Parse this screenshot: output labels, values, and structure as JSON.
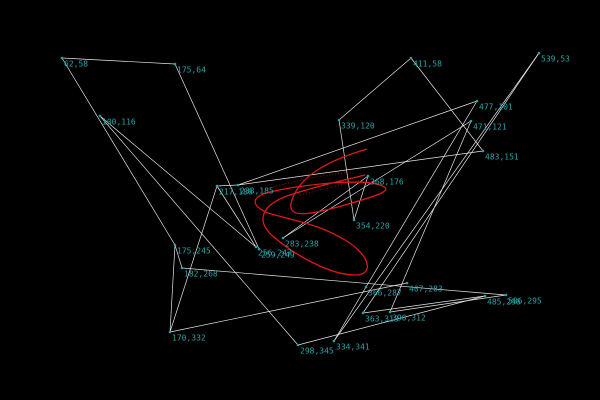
{
  "points": [
    "62,58",
    "175,64",
    "411,58",
    "539,53",
    "100,116",
    "339,120",
    "477,101",
    "471,121",
    "483,151",
    "217,186",
    "238,185",
    "368,176",
    "354,220",
    "283,238",
    "256,247",
    "259,249",
    "175,245",
    "182,268",
    "366,287",
    "407,283",
    "363,313",
    "390,312",
    "485,296",
    "506,295",
    "170,332",
    "298,345",
    "334,341"
  ]
}
